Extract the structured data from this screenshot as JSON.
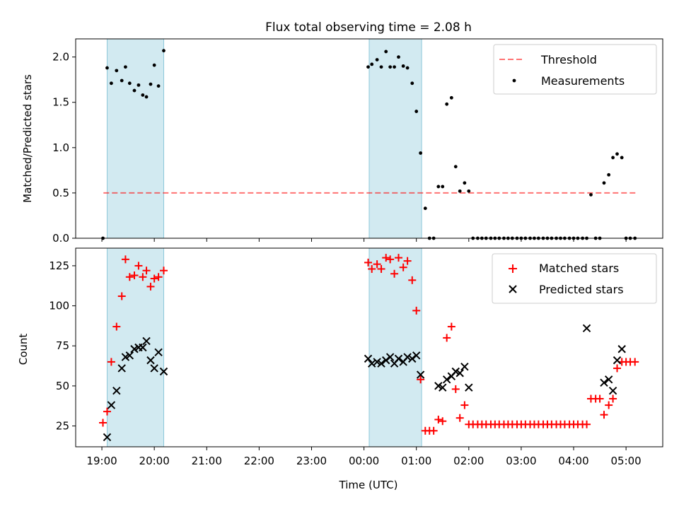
{
  "title": "Flux total observing time = 2.08 h",
  "colors": {
    "band": "#add8e6",
    "threshold": "#ff0000",
    "matched": "#ff0000",
    "predicted": "#000000",
    "measurement": "#000000"
  },
  "x_ticks": [
    "19:00",
    "20:00",
    "21:00",
    "22:00",
    "23:00",
    "00:00",
    "01:00",
    "02:00",
    "03:00",
    "04:00",
    "05:00"
  ],
  "chart_data": [
    {
      "type": "scatter",
      "title": "Flux total observing time = 2.08 h",
      "xlabel": "",
      "ylabel": "Matched/Predicted stars",
      "x_unit": "hours after 19:00 UTC",
      "xlim": [
        -0.5,
        10.7
      ],
      "ylim": [
        0,
        2.2
      ],
      "y_ticks": [
        0.0,
        0.5,
        1.0,
        1.5,
        2.0
      ],
      "grid": false,
      "legend": {
        "position": "top-right",
        "entries": [
          "Threshold",
          "Measurements"
        ]
      },
      "shaded_intervals": [
        [
          0.1,
          1.18
        ],
        [
          5.1,
          6.1
        ]
      ],
      "threshold": {
        "name": "Threshold",
        "value": 0.5,
        "x_range": [
          0.03,
          10.22
        ]
      },
      "series": [
        {
          "name": "Measurements",
          "x": [
            0.02,
            0.1,
            0.18,
            0.28,
            0.38,
            0.45,
            0.53,
            0.62,
            0.7,
            0.78,
            0.85,
            0.93,
            1.0,
            1.08,
            1.18,
            5.08,
            5.15,
            5.25,
            5.33,
            5.42,
            5.5,
            5.58,
            5.66,
            5.75,
            5.83,
            5.92,
            6.0,
            6.08,
            6.17,
            6.25,
            6.33,
            6.42,
            6.5,
            6.58,
            6.67,
            6.75,
            6.83,
            6.92,
            7.0,
            7.08,
            7.17,
            7.25,
            7.33,
            7.42,
            7.5,
            7.58,
            7.67,
            7.75,
            7.83,
            7.92,
            8.0,
            8.08,
            8.17,
            8.25,
            8.33,
            8.42,
            8.5,
            8.58,
            8.67,
            8.75,
            8.83,
            8.92,
            9.0,
            9.08,
            9.17,
            9.25,
            9.33,
            9.42,
            9.5,
            9.58,
            9.67,
            9.75,
            9.83,
            9.92,
            10.0,
            10.08,
            10.17
          ],
          "y": [
            0.0,
            1.88,
            1.71,
            1.85,
            1.74,
            1.89,
            1.71,
            1.63,
            1.69,
            1.58,
            1.56,
            1.7,
            1.91,
            1.68,
            2.07,
            1.89,
            1.92,
            1.97,
            1.89,
            2.06,
            1.89,
            1.89,
            2.0,
            1.9,
            1.88,
            1.71,
            1.4,
            0.94,
            0.33,
            0.0,
            0.0,
            0.57,
            0.57,
            1.48,
            1.55,
            0.79,
            0.52,
            0.61,
            0.52,
            0.0,
            0.0,
            0.0,
            0.0,
            0.0,
            0.0,
            0.0,
            0.0,
            0.0,
            0.0,
            0.0,
            0.0,
            0.0,
            0.0,
            0.0,
            0.0,
            0.0,
            0.0,
            0.0,
            0.0,
            0.0,
            0.0,
            0.0,
            0.0,
            0.0,
            0.0,
            0.0,
            0.48,
            0.0,
            0.0,
            0.61,
            0.7,
            0.89,
            0.93,
            0.89,
            0.0,
            0.0,
            0.0
          ]
        }
      ]
    },
    {
      "type": "scatter",
      "title": "",
      "xlabel": "Time (UTC)",
      "ylabel": "Count",
      "x_unit": "hours after 19:00 UTC",
      "xlim": [
        -0.5,
        10.7
      ],
      "ylim": [
        12,
        136
      ],
      "y_ticks": [
        25,
        50,
        75,
        100,
        125
      ],
      "grid": false,
      "legend": {
        "position": "top-right",
        "entries": [
          "Matched stars",
          "Predicted stars"
        ]
      },
      "shaded_intervals": [
        [
          0.1,
          1.18
        ],
        [
          5.1,
          6.1
        ]
      ],
      "series": [
        {
          "name": "Matched stars",
          "marker": "+",
          "x": [
            0.02,
            0.1,
            0.18,
            0.28,
            0.38,
            0.45,
            0.53,
            0.62,
            0.7,
            0.78,
            0.85,
            0.93,
            1.0,
            1.08,
            1.18,
            5.08,
            5.15,
            5.25,
            5.33,
            5.42,
            5.5,
            5.58,
            5.66,
            5.75,
            5.83,
            5.92,
            6.0,
            6.08,
            6.17,
            6.25,
            6.33,
            6.42,
            6.5,
            6.58,
            6.67,
            6.75,
            6.83,
            6.92,
            7.0,
            7.08,
            7.17,
            7.25,
            7.33,
            7.42,
            7.5,
            7.58,
            7.67,
            7.75,
            7.83,
            7.92,
            8.0,
            8.08,
            8.17,
            8.25,
            8.33,
            8.42,
            8.5,
            8.58,
            8.67,
            8.75,
            8.83,
            8.92,
            9.0,
            9.08,
            9.17,
            9.25,
            9.33,
            9.42,
            9.5,
            9.58,
            9.67,
            9.75,
            9.83,
            9.92,
            10.0,
            10.08,
            10.17
          ],
          "y": [
            27,
            34,
            65,
            87,
            106,
            129,
            118,
            119,
            125,
            118,
            122,
            112,
            117,
            118,
            122,
            127,
            123,
            126,
            123,
            130,
            129,
            120,
            130,
            124,
            128,
            116,
            97,
            54,
            22,
            22,
            22,
            29,
            28,
            80,
            87,
            48,
            30,
            38,
            26,
            26,
            26,
            26,
            26,
            26,
            26,
            26,
            26,
            26,
            26,
            26,
            26,
            26,
            26,
            26,
            26,
            26,
            26,
            26,
            26,
            26,
            26,
            26,
            26,
            26,
            26,
            26,
            42,
            42,
            42,
            32,
            38,
            42,
            61,
            65,
            65,
            65,
            65
          ]
        },
        {
          "name": "Predicted stars",
          "marker": "x",
          "x": [
            0.1,
            0.18,
            0.28,
            0.38,
            0.45,
            0.53,
            0.62,
            0.7,
            0.78,
            0.85,
            0.93,
            1.0,
            1.08,
            1.18,
            5.08,
            5.15,
            5.25,
            5.33,
            5.42,
            5.5,
            5.58,
            5.66,
            5.75,
            5.83,
            5.92,
            6.0,
            6.08,
            6.42,
            6.5,
            6.58,
            6.67,
            6.75,
            6.83,
            6.92,
            7.0,
            9.25,
            9.58,
            9.67,
            9.75,
            9.83,
            9.92
          ],
          "y": [
            18,
            38,
            47,
            61,
            68,
            69,
            73,
            74,
            74,
            78,
            66,
            61,
            71,
            59,
            67,
            64,
            65,
            64,
            66,
            68,
            64,
            67,
            65,
            68,
            67,
            69,
            57,
            50,
            49,
            54,
            56,
            59,
            58,
            62,
            49,
            86,
            52,
            54,
            47,
            66,
            73
          ]
        }
      ]
    }
  ]
}
